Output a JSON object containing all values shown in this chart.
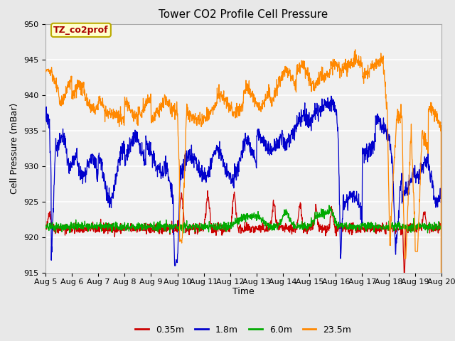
{
  "title": "Tower CO2 Profile Cell Pressure",
  "ylabel": "Cell Pressure (mBar)",
  "xlabel": "Time",
  "ylim": [
    915,
    950
  ],
  "yticks": [
    915,
    920,
    925,
    930,
    935,
    940,
    945,
    950
  ],
  "date_labels": [
    "Aug 5",
    "Aug 6",
    "Aug 7",
    "Aug 8",
    "Aug 9",
    "Aug 10",
    "Aug 11",
    "Aug 12",
    "Aug 13",
    "Aug 14",
    "Aug 15",
    "Aug 16",
    "Aug 17",
    "Aug 18",
    "Aug 19",
    "Aug 20"
  ],
  "annotation_text": "TZ_co2prof",
  "annotation_color": "#aa0000",
  "annotation_bg": "#ffffcc",
  "annotation_border": "#bbaa00",
  "legend_labels": [
    "0.35m",
    "1.8m",
    "6.0m",
    "23.5m"
  ],
  "line_colors": [
    "#cc0000",
    "#0000cc",
    "#00aa00",
    "#ff8800"
  ],
  "fig_bg": "#e8e8e8",
  "plot_bg": "#f0f0f0",
  "grid_color": "#ffffff",
  "title_fontsize": 11,
  "label_fontsize": 9,
  "tick_fontsize": 8
}
